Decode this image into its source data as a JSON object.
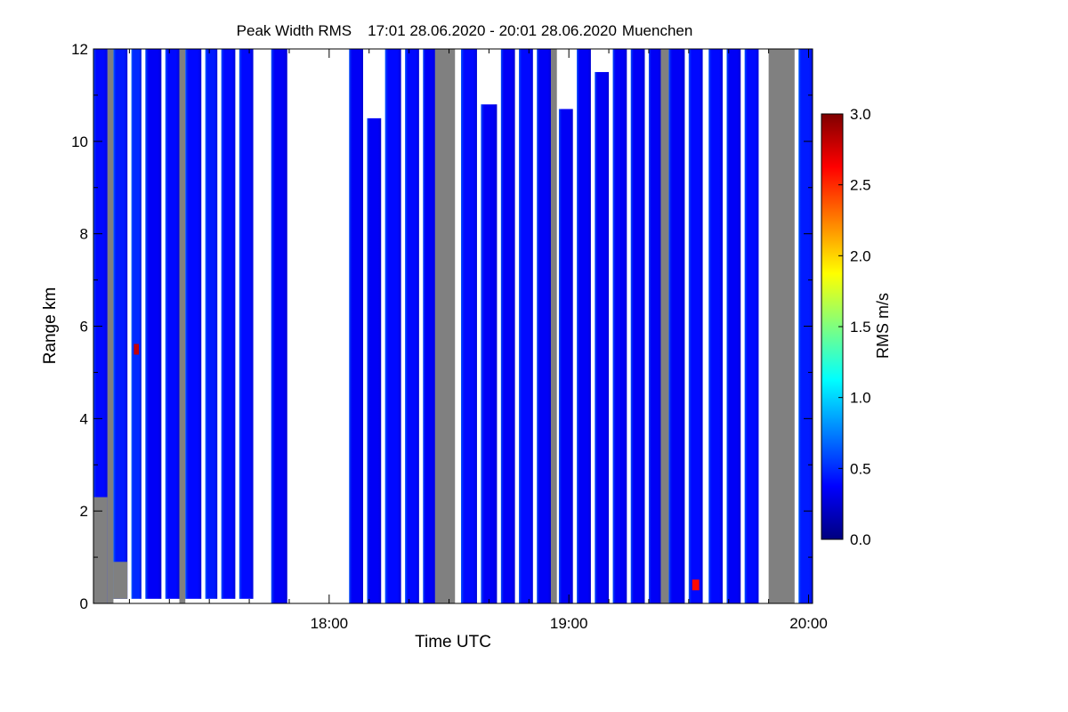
{
  "chart_data": {
    "type": "heatmap",
    "title": "Peak Width RMS",
    "title_period": "17:01 28.06.2020 - 20:01 28.06.2020",
    "title_location": "Muenchen",
    "xlabel": "Time UTC",
    "ylabel": "Range km",
    "x_unit": "minutes after 17:00 UTC",
    "xlim": [
      1,
      181
    ],
    "ylim": [
      0,
      12
    ],
    "x_ticks": [
      {
        "value": 60,
        "label": "18:00"
      },
      {
        "value": 120,
        "label": "19:00"
      },
      {
        "value": 180,
        "label": "20:00"
      }
    ],
    "x_minor_ticks": [
      10,
      20,
      30,
      40,
      50,
      70,
      80,
      90,
      100,
      110,
      130,
      140,
      150,
      160,
      170
    ],
    "y_ticks": [
      {
        "value": 0,
        "label": "0"
      },
      {
        "value": 2,
        "label": "2"
      },
      {
        "value": 4,
        "label": "4"
      },
      {
        "value": 6,
        "label": "6"
      },
      {
        "value": 8,
        "label": "8"
      },
      {
        "value": 10,
        "label": "10"
      },
      {
        "value": 12,
        "label": "12"
      }
    ],
    "colorbar": {
      "label": "RMS m/s",
      "min": 0.0,
      "max": 3.0,
      "ticks": [
        "0.0",
        "0.5",
        "1.0",
        "1.5",
        "2.0",
        "2.5",
        "3.0"
      ],
      "colormap": [
        "#00007f",
        "#0000ff",
        "#007fff",
        "#00ffff",
        "#7fff7f",
        "#ffff00",
        "#ff7f00",
        "#ff0000",
        "#7f0000"
      ]
    },
    "no_data_color": "#808080",
    "scan_segments": [
      {
        "start": 1.0,
        "end": 4.5,
        "base_value": 0.4,
        "top_km": 12,
        "bottom_km": 0,
        "low_gray_km": 2.3
      },
      {
        "start": 6.0,
        "end": 9.5,
        "base_value": 0.45,
        "top_km": 12,
        "bottom_km": 0.1,
        "low_gray_km": 0.9
      },
      {
        "start": 10.5,
        "end": 13.0,
        "base_value": 0.5,
        "top_km": 12,
        "bottom_km": 0.1,
        "peak_value": 2.8,
        "peak_km": 5.5
      },
      {
        "start": 14.0,
        "end": 18.0,
        "base_value": 0.35,
        "top_km": 12,
        "bottom_km": 0.1
      },
      {
        "start": 19.0,
        "end": 22.5,
        "base_value": 0.4,
        "top_km": 12,
        "bottom_km": 0.1
      },
      {
        "start": 24.0,
        "end": 28.0,
        "base_value": 0.4,
        "top_km": 12,
        "bottom_km": 0.1
      },
      {
        "start": 29.0,
        "end": 32.0,
        "base_value": 0.45,
        "top_km": 12,
        "bottom_km": 0.1
      },
      {
        "start": 33.0,
        "end": 36.5,
        "base_value": 0.4,
        "top_km": 12,
        "bottom_km": 0.1
      },
      {
        "start": 37.5,
        "end": 41.0,
        "base_value": 0.4,
        "top_km": 12,
        "bottom_km": 0.1
      },
      {
        "start": 45.5,
        "end": 49.5,
        "base_value": 0.35,
        "top_km": 12,
        "bottom_km": 0.0
      },
      {
        "start": 65.0,
        "end": 68.5,
        "base_value": 0.35,
        "top_km": 12,
        "bottom_km": 0.0
      },
      {
        "start": 69.5,
        "end": 73.0,
        "base_value": 0.35,
        "top_km": 10.5,
        "bottom_km": 0.0
      },
      {
        "start": 74.0,
        "end": 78.0,
        "base_value": 0.4,
        "top_km": 12,
        "bottom_km": 0.0
      },
      {
        "start": 79.0,
        "end": 82.5,
        "base_value": 0.4,
        "top_km": 12,
        "bottom_km": 0.0
      },
      {
        "start": 83.5,
        "end": 86.5,
        "base_value": 0.35,
        "top_km": 12,
        "bottom_km": 0.0
      },
      {
        "start": 93.0,
        "end": 97.0,
        "base_value": 0.4,
        "top_km": 12,
        "bottom_km": 0.0
      },
      {
        "start": 98.0,
        "end": 102.0,
        "base_value": 0.35,
        "top_km": 10.8,
        "bottom_km": 0.0
      },
      {
        "start": 103.0,
        "end": 106.5,
        "base_value": 0.35,
        "top_km": 12,
        "bottom_km": 0.0
      },
      {
        "start": 107.5,
        "end": 111.0,
        "base_value": 0.4,
        "top_km": 12,
        "bottom_km": 0.0
      },
      {
        "start": 112.0,
        "end": 115.5,
        "base_value": 0.35,
        "top_km": 12,
        "bottom_km": 0.0
      },
      {
        "start": 117.5,
        "end": 121.0,
        "base_value": 0.35,
        "top_km": 10.7,
        "bottom_km": 0.0
      },
      {
        "start": 122.0,
        "end": 125.5,
        "base_value": 0.35,
        "top_km": 12,
        "bottom_km": 0.0
      },
      {
        "start": 126.5,
        "end": 130.0,
        "base_value": 0.35,
        "top_km": 11.5,
        "bottom_km": 0.0
      },
      {
        "start": 131.0,
        "end": 134.5,
        "base_value": 0.35,
        "top_km": 12,
        "bottom_km": 0.0
      },
      {
        "start": 135.5,
        "end": 139.0,
        "base_value": 0.35,
        "top_km": 12,
        "bottom_km": 0.0
      },
      {
        "start": 140.0,
        "end": 143.0,
        "base_value": 0.35,
        "top_km": 12,
        "bottom_km": 0.0
      },
      {
        "start": 145.0,
        "end": 149.0,
        "base_value": 0.35,
        "top_km": 12,
        "bottom_km": 0.0
      },
      {
        "start": 150.0,
        "end": 153.5,
        "base_value": 0.4,
        "top_km": 12,
        "bottom_km": 0.0,
        "peak_value": 2.6,
        "peak_km": 0.4
      },
      {
        "start": 155.0,
        "end": 158.5,
        "base_value": 0.4,
        "top_km": 12,
        "bottom_km": 0.0
      },
      {
        "start": 159.5,
        "end": 163.0,
        "base_value": 0.35,
        "top_km": 12,
        "bottom_km": 0.0
      },
      {
        "start": 164.0,
        "end": 167.5,
        "base_value": 0.4,
        "top_km": 12,
        "bottom_km": 0.0
      },
      {
        "start": 177.5,
        "end": 181.0,
        "base_value": 0.45,
        "top_km": 12,
        "bottom_km": 0.0
      }
    ],
    "no_data_segments": [
      {
        "start": 4.5,
        "end": 6.0,
        "top_km": 12,
        "bottom_km": 0
      },
      {
        "start": 22.5,
        "end": 24.0,
        "top_km": 12,
        "bottom_km": 0
      },
      {
        "start": 86.5,
        "end": 91.5,
        "top_km": 12,
        "bottom_km": 0.0
      },
      {
        "start": 115.5,
        "end": 117.0,
        "top_km": 12,
        "bottom_km": 0
      },
      {
        "start": 143.0,
        "end": 145.0,
        "top_km": 12,
        "bottom_km": 0
      },
      {
        "start": 170.0,
        "end": 176.5,
        "top_km": 12,
        "bottom_km": 0
      }
    ]
  }
}
